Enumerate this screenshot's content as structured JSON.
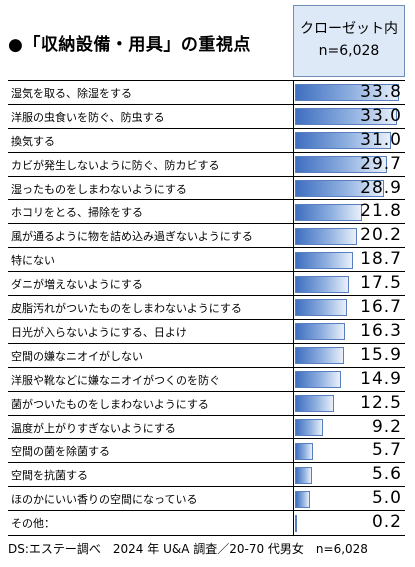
{
  "chart_data": {
    "type": "bar",
    "orientation": "horizontal",
    "title": "●「収納設備・用具」の重視点",
    "column_header": [
      "クローゼット内",
      "n=6,028"
    ],
    "xlim": [
      0,
      35
    ],
    "categories": [
      "湿気を取る、除湿をする",
      "洋服の虫食いを防ぐ、防虫する",
      "換気する",
      "カビが発生しないように防ぐ、防カビする",
      "湿ったものをしまわないようにする",
      "ホコリをとる、掃除をする",
      "風が通るように物を詰め込み過ぎないようにする",
      "特にない",
      "ダニが増えないようにする",
      "皮脂汚れがついたものをしまわないようにする",
      "日光が入らないようにする、日よけ",
      "空間の嫌なニオイがしない",
      "洋服や靴などに嫌なニオイがつくのを防ぐ",
      "菌がついたものをしまわないようにする",
      "温度が上がりすぎないようにする",
      "空間の菌を除菌する",
      "空間を抗菌する",
      "ほのかにいい香りの空間になっている",
      "その他："
    ],
    "values": [
      "33.8",
      "33.0",
      "31.0",
      "29.7",
      "28.9",
      "21.8",
      "20.2",
      "18.7",
      "17.5",
      "16.7",
      "16.3",
      "15.9",
      "14.9",
      "12.5",
      "9.2",
      "5.7",
      "5.6",
      "5.0",
      "0.2"
    ],
    "source": "DS:エステー調べ　2024 年 U&A 調査／20-70 代男女　n=6,028"
  },
  "colors": {
    "bar": "#3f6fc0",
    "header_bg": "#dde9f6"
  }
}
